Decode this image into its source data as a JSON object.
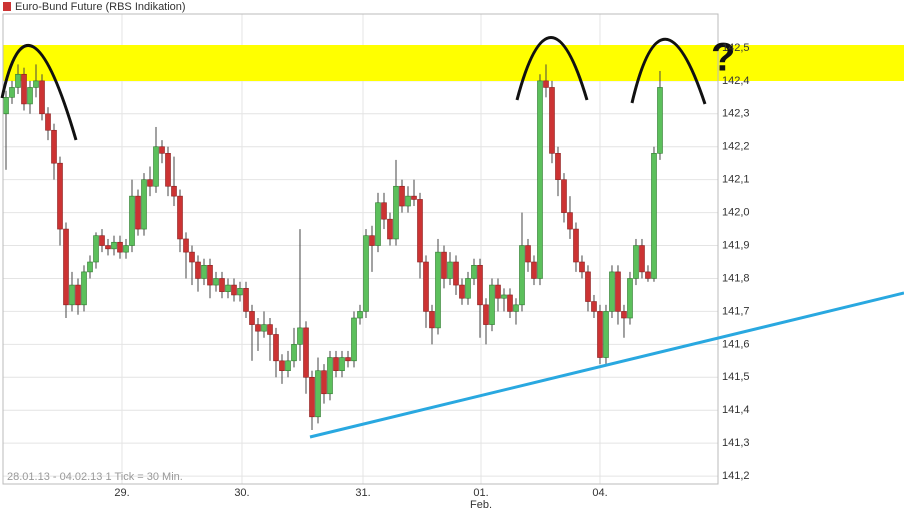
{
  "chart_data": {
    "type": "candlestick",
    "title": "Euro-Bund Future (RBS Indikation)",
    "footnote": "28.01.13 - 04.02.13   1 Tick = 30 Min.",
    "month_label": "Feb.",
    "up_color": "#5cc05c",
    "down_color": "#cc3333",
    "ylim": [
      141.176,
      142.603
    ],
    "yticks": [
      {
        "value": 141.2,
        "label": "141,2"
      },
      {
        "value": 141.3,
        "label": "141,3"
      },
      {
        "value": 141.4,
        "label": "141,4"
      },
      {
        "value": 141.5,
        "label": "141,5"
      },
      {
        "value": 141.6,
        "label": "141,6"
      },
      {
        "value": 141.7,
        "label": "141,7"
      },
      {
        "value": 141.8,
        "label": "141,8"
      },
      {
        "value": 141.9,
        "label": "141,9"
      },
      {
        "value": 142.0,
        "label": "142,0"
      },
      {
        "value": 142.1,
        "label": "142,1"
      },
      {
        "value": 142.2,
        "label": "142,2"
      },
      {
        "value": 142.3,
        "label": "142,3"
      },
      {
        "value": 142.4,
        "label": "142,4"
      },
      {
        "value": 142.5,
        "label": "142,5"
      }
    ],
    "xlim": [
      -0.5,
      118.67
    ],
    "xticks": [
      {
        "value": 19.33,
        "label": "29."
      },
      {
        "value": 39.33,
        "label": "30."
      },
      {
        "value": 59.5,
        "label": "31."
      },
      {
        "value": 79.17,
        "label": "01."
      },
      {
        "value": 99,
        "label": "04."
      }
    ],
    "grid": true,
    "open": [
      142.3,
      142.35,
      142.38,
      142.42,
      142.33,
      142.38,
      142.4,
      142.3,
      142.25,
      142.15,
      141.95,
      141.72,
      141.78,
      141.72,
      141.82,
      141.85,
      141.93,
      141.9,
      141.89,
      141.91,
      141.88,
      141.9,
      142.05,
      141.95,
      142.1,
      142.08,
      142.2,
      142.18,
      142.08,
      142.05,
      141.92,
      141.88,
      141.85,
      141.8,
      141.84,
      141.78,
      141.8,
      141.76,
      141.78,
      141.75,
      141.77,
      141.7,
      141.66,
      141.64,
      141.66,
      141.63,
      141.55,
      141.52,
      141.55,
      141.6,
      141.65,
      141.5,
      141.38,
      141.52,
      141.45,
      141.56,
      141.52,
      141.56,
      141.55,
      141.68,
      141.7,
      141.93,
      141.9,
      142.03,
      141.98,
      141.92,
      142.08,
      142.02,
      142.05,
      142.04,
      141.85,
      141.7,
      141.65,
      141.88,
      141.8,
      141.85,
      141.78,
      141.74,
      141.8,
      141.84,
      141.72,
      141.66,
      141.78,
      141.74,
      141.75,
      141.7,
      141.72,
      141.9,
      141.85,
      141.8,
      142.4,
      142.38,
      142.18,
      142.1,
      142.0,
      141.95,
      141.85,
      141.82,
      141.73,
      141.7,
      141.56,
      141.7,
      141.82,
      141.7,
      141.68,
      141.8,
      141.9,
      141.82,
      141.8,
      142.18
    ],
    "high": [
      142.37,
      142.4,
      142.45,
      142.44,
      142.4,
      142.45,
      142.42,
      142.32,
      142.27,
      142.17,
      141.97,
      141.82,
      141.8,
      141.84,
      141.87,
      141.94,
      141.95,
      141.92,
      141.93,
      141.93,
      141.92,
      142.1,
      142.07,
      142.12,
      142.14,
      142.26,
      142.22,
      142.2,
      142.17,
      142.07,
      141.94,
      141.9,
      141.87,
      141.86,
      141.86,
      141.82,
      141.82,
      141.8,
      141.8,
      141.79,
      141.79,
      141.72,
      141.68,
      141.7,
      141.68,
      141.65,
      141.57,
      141.58,
      141.65,
      141.95,
      141.67,
      141.52,
      141.56,
      141.54,
      141.58,
      141.58,
      141.58,
      141.58,
      141.7,
      141.72,
      141.95,
      141.96,
      142.06,
      142.06,
      142.0,
      142.16,
      142.1,
      142.08,
      142.1,
      142.06,
      141.87,
      141.72,
      141.92,
      141.9,
      141.88,
      141.87,
      141.8,
      141.82,
      141.86,
      141.86,
      141.74,
      141.8,
      141.8,
      141.77,
      141.77,
      141.74,
      142.0,
      141.92,
      141.87,
      142.42,
      142.45,
      142.4,
      142.2,
      142.12,
      142.05,
      141.97,
      141.87,
      141.84,
      141.75,
      141.72,
      141.72,
      141.84,
      141.84,
      141.72,
      141.82,
      141.92,
      141.92,
      141.84,
      142.2,
      142.43
    ],
    "low": [
      142.13,
      142.33,
      142.36,
      142.31,
      142.3,
      142.35,
      142.28,
      142.22,
      142.1,
      141.9,
      141.68,
      141.7,
      141.69,
      141.7,
      141.8,
      141.83,
      141.88,
      141.87,
      141.87,
      141.86,
      141.86,
      141.88,
      141.93,
      141.93,
      142.05,
      142.06,
      142.15,
      142.05,
      142.02,
      141.88,
      141.8,
      141.78,
      141.76,
      141.78,
      141.74,
      141.76,
      141.74,
      141.74,
      141.73,
      141.73,
      141.68,
      141.55,
      141.58,
      141.62,
      141.55,
      141.5,
      141.48,
      141.5,
      141.53,
      141.55,
      141.45,
      141.34,
      141.36,
      141.42,
      141.43,
      141.5,
      141.5,
      141.53,
      141.53,
      141.66,
      141.68,
      141.82,
      141.88,
      141.95,
      141.9,
      141.9,
      142.0,
      142.0,
      142.02,
      141.8,
      141.65,
      141.6,
      141.63,
      141.77,
      141.78,
      141.75,
      141.72,
      141.72,
      141.78,
      141.62,
      141.6,
      141.64,
      141.7,
      141.7,
      141.68,
      141.66,
      141.7,
      141.82,
      141.78,
      141.78,
      142.35,
      142.15,
      142.05,
      141.97,
      141.92,
      141.82,
      141.8,
      141.7,
      141.68,
      141.54,
      141.54,
      141.68,
      141.66,
      141.62,
      141.66,
      141.78,
      141.8,
      141.79,
      141.79,
      142.16
    ],
    "close": [
      142.35,
      142.38,
      142.42,
      142.33,
      142.38,
      142.4,
      142.3,
      142.25,
      142.15,
      141.95,
      141.72,
      141.78,
      141.72,
      141.82,
      141.85,
      141.93,
      141.9,
      141.89,
      141.91,
      141.88,
      141.9,
      142.05,
      141.95,
      142.1,
      142.08,
      142.2,
      142.18,
      142.08,
      142.05,
      141.92,
      141.88,
      141.85,
      141.8,
      141.84,
      141.78,
      141.8,
      141.76,
      141.78,
      141.75,
      141.77,
      141.7,
      141.66,
      141.64,
      141.66,
      141.63,
      141.55,
      141.52,
      141.55,
      141.6,
      141.65,
      141.5,
      141.38,
      141.52,
      141.45,
      141.56,
      141.52,
      141.56,
      141.55,
      141.68,
      141.7,
      141.93,
      141.9,
      142.03,
      141.98,
      141.92,
      142.08,
      142.02,
      142.05,
      142.04,
      141.85,
      141.7,
      141.65,
      141.88,
      141.8,
      141.85,
      141.78,
      141.74,
      141.8,
      141.84,
      141.72,
      141.66,
      141.78,
      141.74,
      141.75,
      141.7,
      141.72,
      141.9,
      141.85,
      141.8,
      142.4,
      142.38,
      142.18,
      142.1,
      142.0,
      141.95,
      141.85,
      141.82,
      141.73,
      141.7,
      141.56,
      141.7,
      141.82,
      141.7,
      141.68,
      141.8,
      141.9,
      141.82,
      141.8,
      142.18,
      142.38
    ]
  }
}
